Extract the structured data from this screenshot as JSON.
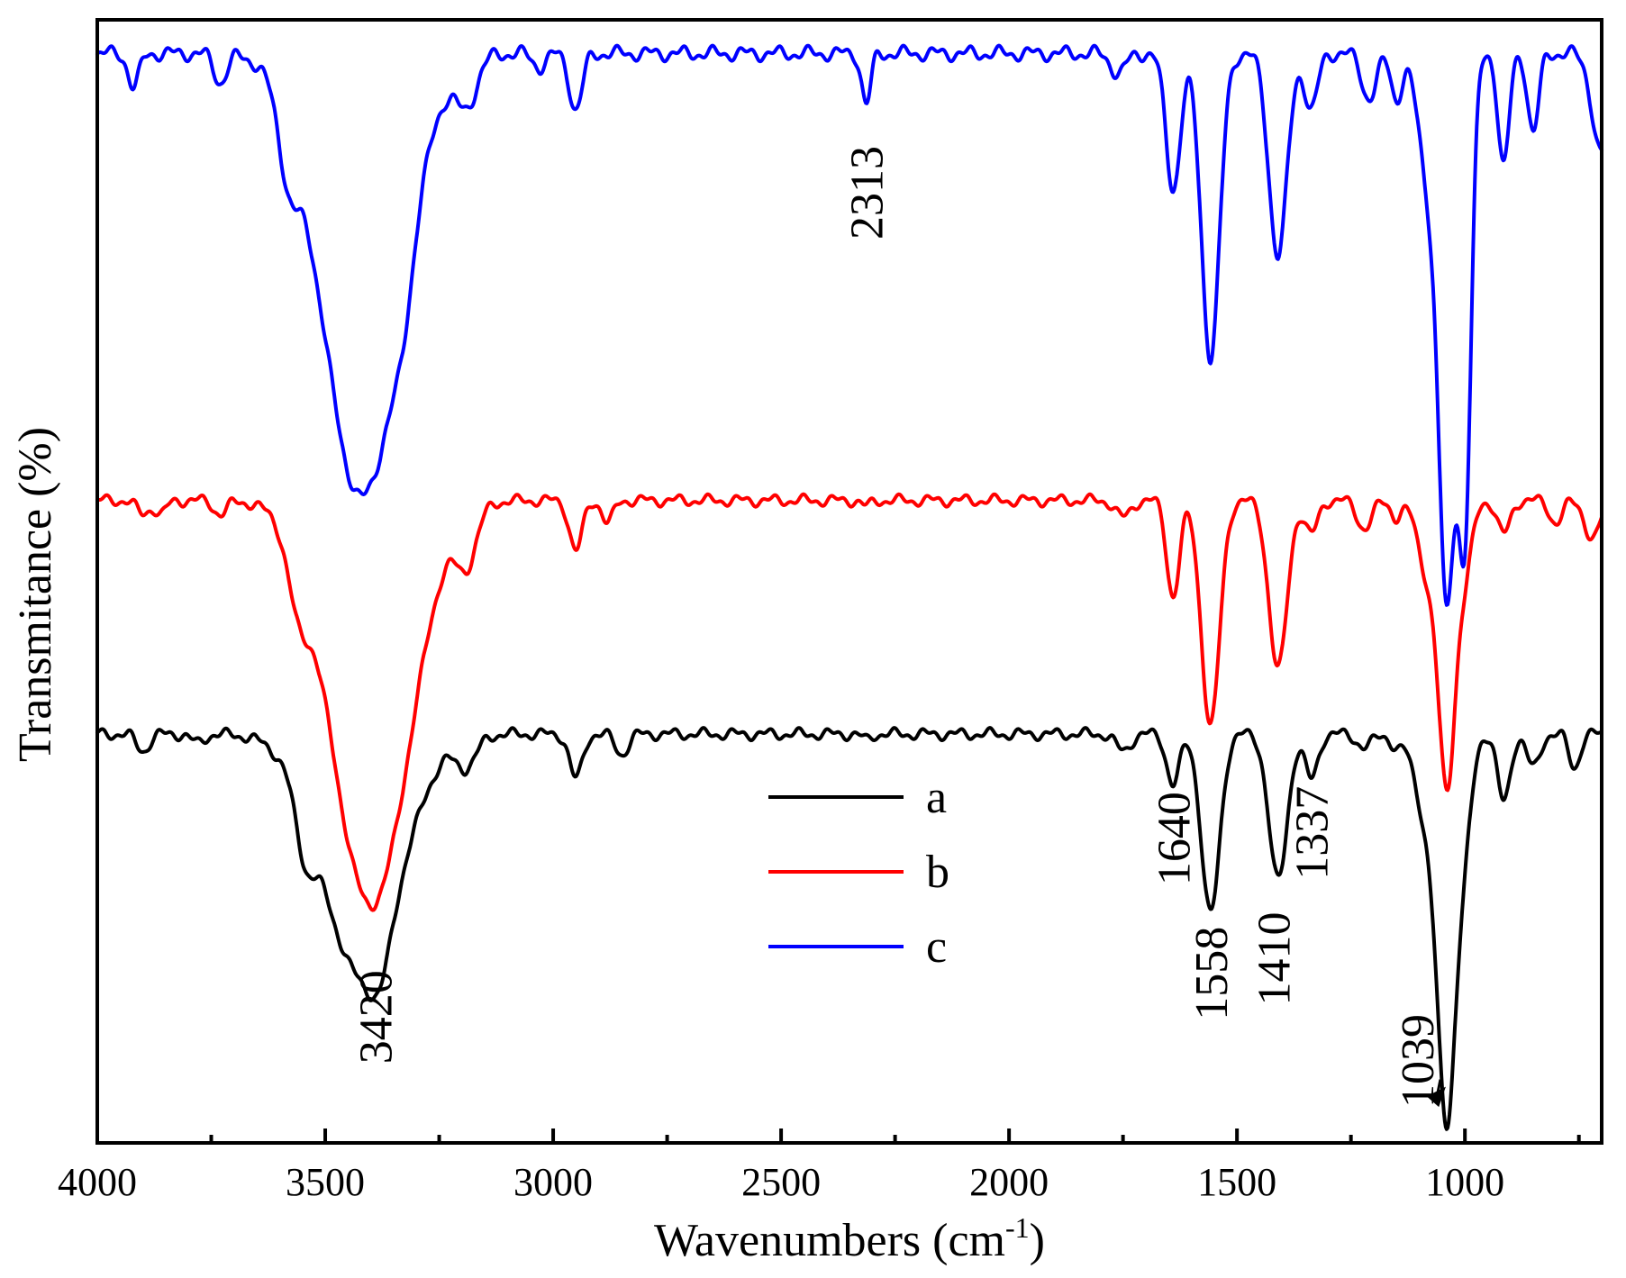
{
  "chart_data": {
    "type": "line",
    "title": "",
    "xlabel": "Wavenumbers (cm",
    "xlabel_sup": "-1",
    "xlabel_close": ")",
    "ylabel": "Transmitance (%)",
    "xlim": [
      4000,
      700
    ],
    "ylim": [
      0,
      100
    ],
    "x_ticks": [
      4000,
      3500,
      3000,
      2500,
      2000,
      1500,
      1000
    ],
    "x_tick_labels": [
      "4000",
      "3500",
      "3000",
      "2500",
      "2000",
      "1500",
      "1000"
    ],
    "y_ticks_shown": false,
    "legend": {
      "position": "center-bottom"
    },
    "series": [
      {
        "name": "a",
        "color": "#000000",
        "baseline": 36.4,
        "peaks": [
          {
            "x": 3900,
            "depth": 1.5,
            "width": 14
          },
          {
            "x": 3780,
            "depth": 0.8,
            "width": 14
          },
          {
            "x": 3545,
            "depth": 4.5,
            "width": 20
          },
          {
            "x": 3420,
            "depth": 21.5,
            "width": 85
          },
          {
            "x": 3380,
            "depth": 3.5,
            "width": 22
          },
          {
            "x": 3190,
            "depth": 2.5,
            "width": 22
          },
          {
            "x": 2950,
            "depth": 4.0,
            "width": 14
          },
          {
            "x": 2850,
            "depth": 1.8,
            "width": 14
          },
          {
            "x": 2313,
            "depth": 0.5,
            "width": 10
          },
          {
            "x": 1750,
            "depth": 1.5,
            "width": 16
          },
          {
            "x": 1640,
            "depth": 4.5,
            "width": 14
          },
          {
            "x": 1558,
            "depth": 16.0,
            "width": 20
          },
          {
            "x": 1410,
            "depth": 13.0,
            "width": 20
          },
          {
            "x": 1337,
            "depth": 4.0,
            "width": 14
          },
          {
            "x": 1220,
            "depth": 1.2,
            "width": 16
          },
          {
            "x": 1150,
            "depth": 1.2,
            "width": 12
          },
          {
            "x": 1080,
            "depth": 8.0,
            "width": 26
          },
          {
            "x": 1039,
            "depth": 32.0,
            "width": 20
          },
          {
            "x": 1000,
            "depth": 8.0,
            "width": 16
          },
          {
            "x": 915,
            "depth": 6.0,
            "width": 14
          },
          {
            "x": 850,
            "depth": 3.0,
            "width": 14
          },
          {
            "x": 760,
            "depth": 3.0,
            "width": 12
          }
        ],
        "ripple": 0.35
      },
      {
        "name": "b",
        "color": "#ff0000",
        "baseline": 57.2,
        "peaks": [
          {
            "x": 3900,
            "depth": 1.2,
            "width": 14
          },
          {
            "x": 3860,
            "depth": 1.2,
            "width": 12
          },
          {
            "x": 3730,
            "depth": 1.2,
            "width": 14
          },
          {
            "x": 3560,
            "depth": 5.0,
            "width": 22
          },
          {
            "x": 3400,
            "depth": 36.0,
            "width": 85
          },
          {
            "x": 3190,
            "depth": 4.5,
            "width": 22
          },
          {
            "x": 2950,
            "depth": 4.5,
            "width": 14
          },
          {
            "x": 2880,
            "depth": 2.0,
            "width": 12
          },
          {
            "x": 2313,
            "depth": 0.5,
            "width": 10
          },
          {
            "x": 1750,
            "depth": 1.5,
            "width": 16
          },
          {
            "x": 1640,
            "depth": 8.5,
            "width": 14
          },
          {
            "x": 1558,
            "depth": 20.0,
            "width": 20
          },
          {
            "x": 1410,
            "depth": 15.0,
            "width": 20
          },
          {
            "x": 1337,
            "depth": 3.0,
            "width": 14
          },
          {
            "x": 1220,
            "depth": 2.5,
            "width": 16
          },
          {
            "x": 1150,
            "depth": 1.5,
            "width": 12
          },
          {
            "x": 1080,
            "depth": 6.5,
            "width": 22
          },
          {
            "x": 1039,
            "depth": 24.5,
            "width": 18
          },
          {
            "x": 1000,
            "depth": 6.0,
            "width": 16
          },
          {
            "x": 915,
            "depth": 3.0,
            "width": 14
          },
          {
            "x": 800,
            "depth": 2.0,
            "width": 14
          },
          {
            "x": 720,
            "depth": 3.5,
            "width": 16
          }
        ],
        "ripple": 0.35
      },
      {
        "name": "c",
        "color": "#0000ff",
        "baseline": 97.0,
        "peaks": [
          {
            "x": 3920,
            "depth": 3.0,
            "width": 12
          },
          {
            "x": 3730,
            "depth": 2.5,
            "width": 14
          },
          {
            "x": 3580,
            "depth": 6.0,
            "width": 22
          },
          {
            "x": 3420,
            "depth": 39.5,
            "width": 85
          },
          {
            "x": 3330,
            "depth": 4.0,
            "width": 22
          },
          {
            "x": 3190,
            "depth": 4.0,
            "width": 22
          },
          {
            "x": 3030,
            "depth": 1.2,
            "width": 14
          },
          {
            "x": 2950,
            "depth": 5.0,
            "width": 14
          },
          {
            "x": 2313,
            "depth": 4.5,
            "width": 10
          },
          {
            "x": 1760,
            "depth": 1.8,
            "width": 16
          },
          {
            "x": 1640,
            "depth": 12.0,
            "width": 16
          },
          {
            "x": 1558,
            "depth": 27.0,
            "width": 20
          },
          {
            "x": 1410,
            "depth": 18.0,
            "width": 20
          },
          {
            "x": 1337,
            "depth": 5.0,
            "width": 14
          },
          {
            "x": 1210,
            "depth": 4.0,
            "width": 16
          },
          {
            "x": 1150,
            "depth": 4.0,
            "width": 12
          },
          {
            "x": 1080,
            "depth": 11.0,
            "width": 22
          },
          {
            "x": 1039,
            "depth": 47.0,
            "width": 18
          },
          {
            "x": 1000,
            "depth": 40.0,
            "width": 14
          },
          {
            "x": 915,
            "depth": 10.0,
            "width": 12
          },
          {
            "x": 850,
            "depth": 7.0,
            "width": 12
          },
          {
            "x": 700,
            "depth": 9.0,
            "width": 20
          }
        ],
        "ripple": 0.45
      }
    ],
    "annotations": [
      {
        "text": "2313",
        "x": 2313,
        "y": 84.6,
        "rotation": -90
      },
      {
        "text": "3420",
        "x": 3390,
        "y": 11.2,
        "rotation": -90
      },
      {
        "text": "1640",
        "x": 1640,
        "y": 27.1,
        "rotation": -90
      },
      {
        "text": "1558",
        "x": 1558,
        "y": 15.1,
        "rotation": -90
      },
      {
        "text": "1410",
        "x": 1420,
        "y": 16.4,
        "rotation": -90
      },
      {
        "text": "1337",
        "x": 1337,
        "y": 27.6,
        "rotation": -90
      },
      {
        "text": "1039",
        "x": 1105,
        "y": 7.3,
        "rotation": -90,
        "arrow_to": {
          "x": 1042,
          "y": 5.0
        }
      }
    ]
  }
}
